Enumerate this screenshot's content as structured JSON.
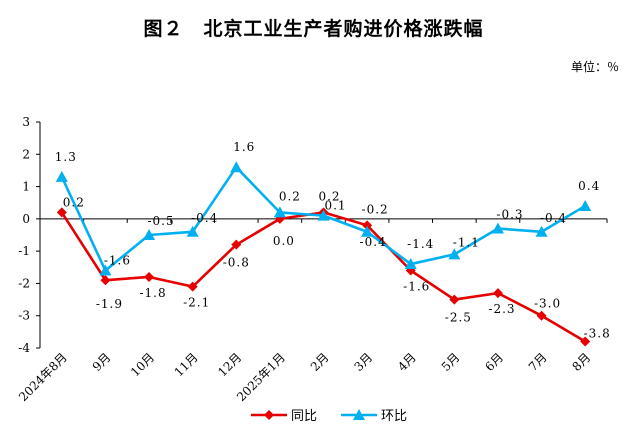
{
  "title": "图２　北京工业生产者购进价格涨跌幅",
  "unit": "单位：％",
  "chart_data": {
    "type": "line",
    "categories": [
      "2024年8月",
      "9月",
      "10月",
      "11月",
      "12月",
      "2025年1月",
      "2月",
      "3月",
      "4月",
      "5月",
      "6月",
      "7月",
      "8月"
    ],
    "ylim": [
      -4,
      3
    ],
    "yticks": [
      -4,
      -3,
      -2,
      -1,
      0,
      1,
      2,
      3
    ],
    "legend": "bottom",
    "series": [
      {
        "name": "同比",
        "color": "#e60000",
        "marker": "diamond",
        "values": [
          0.2,
          -1.9,
          -1.8,
          -2.1,
          -0.8,
          0.0,
          0.2,
          -0.2,
          -1.6,
          -2.5,
          -2.3,
          -3.0,
          -3.8
        ],
        "labels": [
          "0.2",
          "-1.9",
          "-1.8",
          "-2.1",
          "-0.8",
          "0.0",
          "0.2",
          "-0.2",
          "-1.6",
          "-2.5",
          "-2.3",
          "-3.0",
          "-3.8"
        ]
      },
      {
        "name": "环比",
        "color": "#00b0f0",
        "marker": "triangle",
        "values": [
          1.3,
          -1.6,
          -0.5,
          -0.4,
          1.6,
          0.2,
          0.1,
          -0.4,
          -1.4,
          -1.1,
          -0.3,
          -0.4,
          0.4
        ],
        "labels": [
          "1.3",
          "-1.6",
          "-0.5",
          "-0.4",
          "1.6",
          "0.2",
          "0.1",
          "-0.4",
          "-1.4",
          "-1.1",
          "-0.3",
          "-0.4",
          "0.4"
        ]
      }
    ]
  }
}
